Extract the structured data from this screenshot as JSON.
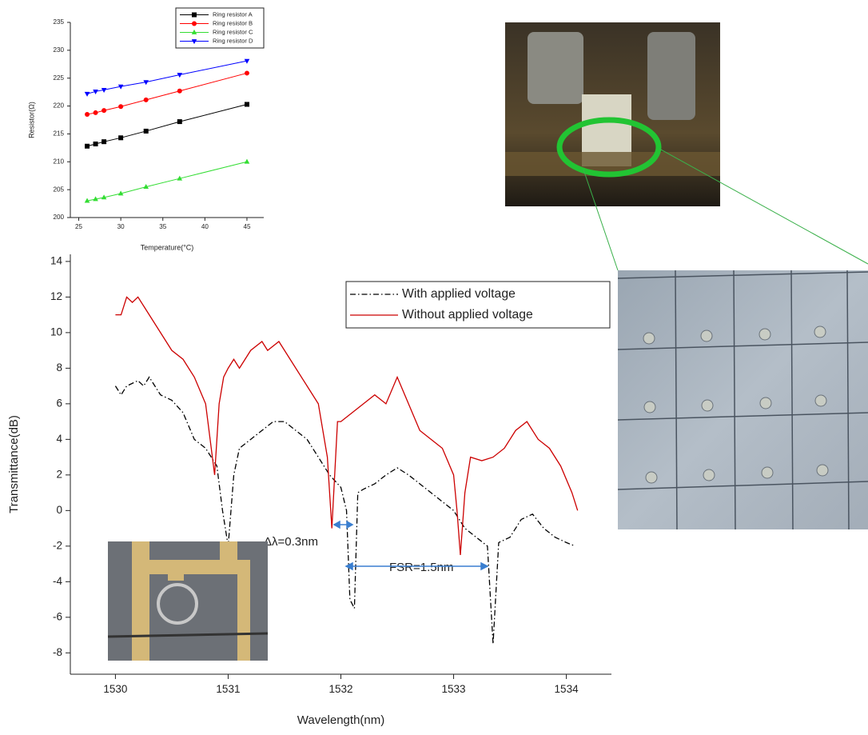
{
  "chart_data": [
    {
      "type": "line",
      "x_label": "Temperature(°C)",
      "y_label": "Resistor(Ω)",
      "x": [
        26,
        27,
        28,
        30,
        33,
        37,
        45
      ],
      "series": [
        {
          "name": "Ring resistor A",
          "color": "#000000",
          "marker": "square",
          "values": [
            212.8,
            213.2,
            213.6,
            214.3,
            215.5,
            217.2,
            220.3
          ]
        },
        {
          "name": "Ring resistor B",
          "color": "#ff0000",
          "marker": "circle",
          "values": [
            218.5,
            218.8,
            219.2,
            219.9,
            221.1,
            222.7,
            225.9
          ]
        },
        {
          "name": "Ring resistor C",
          "color": "#33dd33",
          "marker": "triangle-up",
          "values": [
            203,
            203.3,
            203.6,
            204.3,
            205.5,
            207,
            210
          ]
        },
        {
          "name": "Ring resistor D",
          "color": "#0000ff",
          "marker": "triangle-down",
          "values": [
            222.2,
            222.6,
            222.9,
            223.5,
            224.3,
            225.6,
            228.1
          ]
        }
      ],
      "xlim": [
        24,
        47
      ],
      "xticks": [
        25,
        30,
        35,
        40,
        45
      ],
      "ylim": [
        200,
        235
      ],
      "yticks": [
        200,
        205,
        210,
        215,
        220,
        225,
        230,
        235
      ],
      "legend": "upper right"
    },
    {
      "type": "line",
      "x_label": "Wavelength(nm)",
      "y_label": "Transmittance(dB)",
      "series": [
        {
          "name": "With applied voltage",
          "color": "#000000",
          "dash": "dash-dot",
          "x": [
            1530,
            1530.05,
            1530.1,
            1530.2,
            1530.25,
            1530.3,
            1530.4,
            1530.5,
            1530.6,
            1530.7,
            1530.8,
            1530.9,
            1530.95,
            1531,
            1531.05,
            1531.1,
            1531.2,
            1531.3,
            1531.4,
            1531.5,
            1531.6,
            1531.7,
            1531.8,
            1531.9,
            1532,
            1532.05,
            1532.08,
            1532.12,
            1532.15,
            1532.2,
            1532.3,
            1532.4,
            1532.5,
            1532.6,
            1532.7,
            1532.8,
            1532.9,
            1533,
            1533.1,
            1533.2,
            1533.3,
            1533.35,
            1533.4,
            1533.5,
            1533.6,
            1533.7,
            1533.8,
            1533.9,
            1534,
            1534.08
          ],
          "values": [
            7,
            6.5,
            7,
            7.3,
            7,
            7.5,
            6.5,
            6.2,
            5.5,
            4,
            3.5,
            2.5,
            0,
            -2,
            2,
            3.5,
            4,
            4.5,
            5,
            5,
            4.5,
            4,
            3,
            2,
            1.3,
            0,
            -5,
            -5.5,
            1,
            1.2,
            1.5,
            2,
            2.4,
            2,
            1.5,
            1,
            0.5,
            0,
            -1,
            -1.5,
            -2,
            -7.5,
            -1.8,
            -1.5,
            -0.5,
            -0.2,
            -1,
            -1.5,
            -1.8,
            -2
          ]
        },
        {
          "name": "Without applied voltage",
          "color": "#cc0000",
          "dash": "solid",
          "x": [
            1530,
            1530.05,
            1530.1,
            1530.15,
            1530.2,
            1530.25,
            1530.3,
            1530.4,
            1530.5,
            1530.6,
            1530.7,
            1530.8,
            1530.85,
            1530.88,
            1530.92,
            1530.96,
            1531,
            1531.05,
            1531.1,
            1531.2,
            1531.3,
            1531.35,
            1531.45,
            1531.5,
            1531.6,
            1531.7,
            1531.8,
            1531.88,
            1531.92,
            1531.97,
            1532,
            1532.1,
            1532.2,
            1532.3,
            1532.4,
            1532.5,
            1532.6,
            1532.7,
            1532.8,
            1532.9,
            1533,
            1533.03,
            1533.06,
            1533.1,
            1533.15,
            1533.25,
            1533.35,
            1533.45,
            1533.55,
            1533.65,
            1533.75,
            1533.85,
            1533.95,
            1534.05,
            1534.1
          ],
          "values": [
            11,
            11,
            12,
            11.7,
            12,
            11.5,
            11,
            10,
            9,
            8.5,
            7.5,
            6,
            3.5,
            2,
            6,
            7.5,
            8,
            8.5,
            8,
            9,
            9.5,
            9,
            9.5,
            9,
            8,
            7,
            6,
            3,
            -1,
            5,
            5,
            5.5,
            6,
            6.5,
            6,
            7.5,
            6,
            4.5,
            4,
            3.5,
            2,
            0,
            -2.5,
            1,
            3,
            2.8,
            3,
            3.5,
            4.5,
            5,
            4,
            3.5,
            2.5,
            1,
            0
          ]
        }
      ],
      "xlim": [
        1529.6,
        1534.4
      ],
      "xticks": [
        1530,
        1531,
        1532,
        1533,
        1534
      ],
      "ylim": [
        -9.2,
        14.4
      ],
      "yticks": [
        -8,
        -6,
        -4,
        -2,
        0,
        2,
        4,
        6,
        8,
        10,
        12,
        14
      ],
      "legend": "upper right",
      "annotations": [
        "Δλ=0.3nm",
        "FSR=1.5nm"
      ]
    }
  ]
}
